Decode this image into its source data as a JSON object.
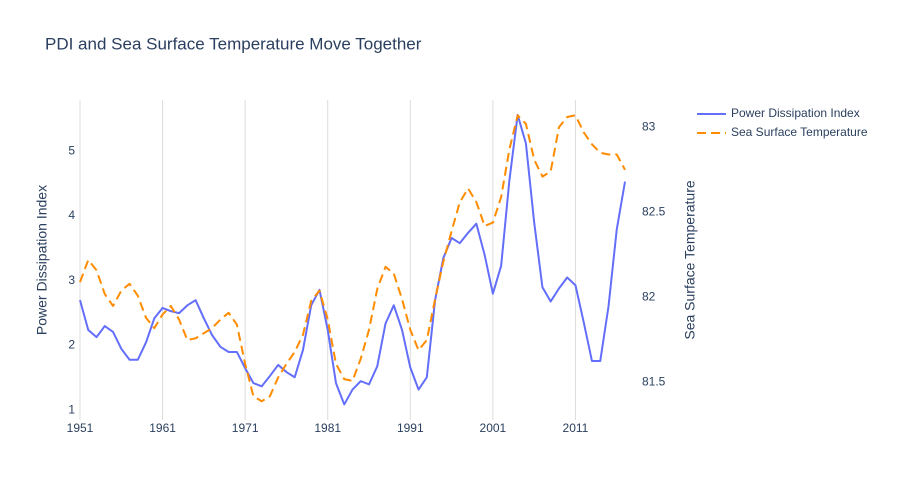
{
  "chart_data": {
    "type": "line",
    "title": "PDI and Sea Surface Temperature Move Together",
    "ylabel": "Power Dissipation Index",
    "y2label": "Sea Surface Temperature",
    "x": [
      1951,
      1952,
      1953,
      1954,
      1955,
      1956,
      1957,
      1958,
      1959,
      1960,
      1961,
      1962,
      1963,
      1964,
      1965,
      1966,
      1967,
      1968,
      1969,
      1970,
      1971,
      1972,
      1973,
      1974,
      1975,
      1976,
      1977,
      1978,
      1979,
      1980,
      1981,
      1982,
      1983,
      1984,
      1985,
      1986,
      1987,
      1988,
      1989,
      1990,
      1991,
      1992,
      1993,
      1994,
      1995,
      1996,
      1997,
      1998,
      1999,
      2000,
      2001,
      2002,
      2003,
      2004,
      2005,
      2006,
      2007,
      2008,
      2009,
      2010,
      2011,
      2012,
      2013,
      2014,
      2015,
      2016,
      2017
    ],
    "series": [
      {
        "name": "Power Dissipation Index",
        "color": "#636efa",
        "dash": "solid",
        "axis": "y",
        "values": [
          2.7,
          2.24,
          2.13,
          2.3,
          2.21,
          1.95,
          1.78,
          1.78,
          2.05,
          2.42,
          2.58,
          2.53,
          2.5,
          2.62,
          2.7,
          2.42,
          2.16,
          1.98,
          1.9,
          1.9,
          1.65,
          1.42,
          1.37,
          1.53,
          1.7,
          1.59,
          1.51,
          1.93,
          2.62,
          2.86,
          2.24,
          1.42,
          1.09,
          1.32,
          1.45,
          1.4,
          1.68,
          2.34,
          2.62,
          2.24,
          1.66,
          1.32,
          1.51,
          2.7,
          3.35,
          3.66,
          3.58,
          3.74,
          3.88,
          3.4,
          2.8,
          3.23,
          4.55,
          5.56,
          5.12,
          3.9,
          2.9,
          2.68,
          2.88,
          3.05,
          2.93,
          2.36,
          1.76,
          1.76,
          2.6,
          3.79,
          4.53
        ]
      },
      {
        "name": "Sea Surface Temperature",
        "color": "#ff8c00",
        "dash": "dash",
        "axis": "y2",
        "values": [
          82.09,
          82.22,
          82.16,
          82.02,
          81.95,
          82.04,
          82.08,
          82.01,
          81.88,
          81.82,
          81.9,
          81.95,
          81.87,
          81.75,
          81.76,
          81.79,
          81.82,
          81.87,
          81.91,
          81.84,
          81.61,
          81.42,
          81.39,
          81.42,
          81.53,
          81.61,
          81.68,
          81.78,
          81.98,
          82.04,
          81.87,
          81.61,
          81.52,
          81.51,
          81.64,
          81.81,
          82.05,
          82.18,
          82.14,
          81.99,
          81.81,
          81.69,
          81.75,
          81.99,
          82.21,
          82.39,
          82.56,
          82.64,
          82.56,
          82.42,
          82.44,
          82.59,
          82.87,
          83.07,
          83.02,
          82.81,
          82.71,
          82.74,
          83.0,
          83.06,
          83.07,
          82.97,
          82.9,
          82.85,
          82.84,
          82.84,
          82.75
        ]
      }
    ],
    "xlim": [
      1951,
      2017
    ],
    "xticks": [
      1951,
      1961,
      1971,
      1981,
      1991,
      2001,
      2011
    ],
    "ylim": [
      0.85,
      5.79
    ],
    "yticks": [
      1,
      2,
      3,
      4,
      5
    ],
    "y2lim": [
      81.28,
      83.16
    ],
    "y2ticks": [
      81.5,
      82,
      82.5,
      83
    ],
    "xgrid": true,
    "ygrid": false,
    "legend": "top-right"
  }
}
